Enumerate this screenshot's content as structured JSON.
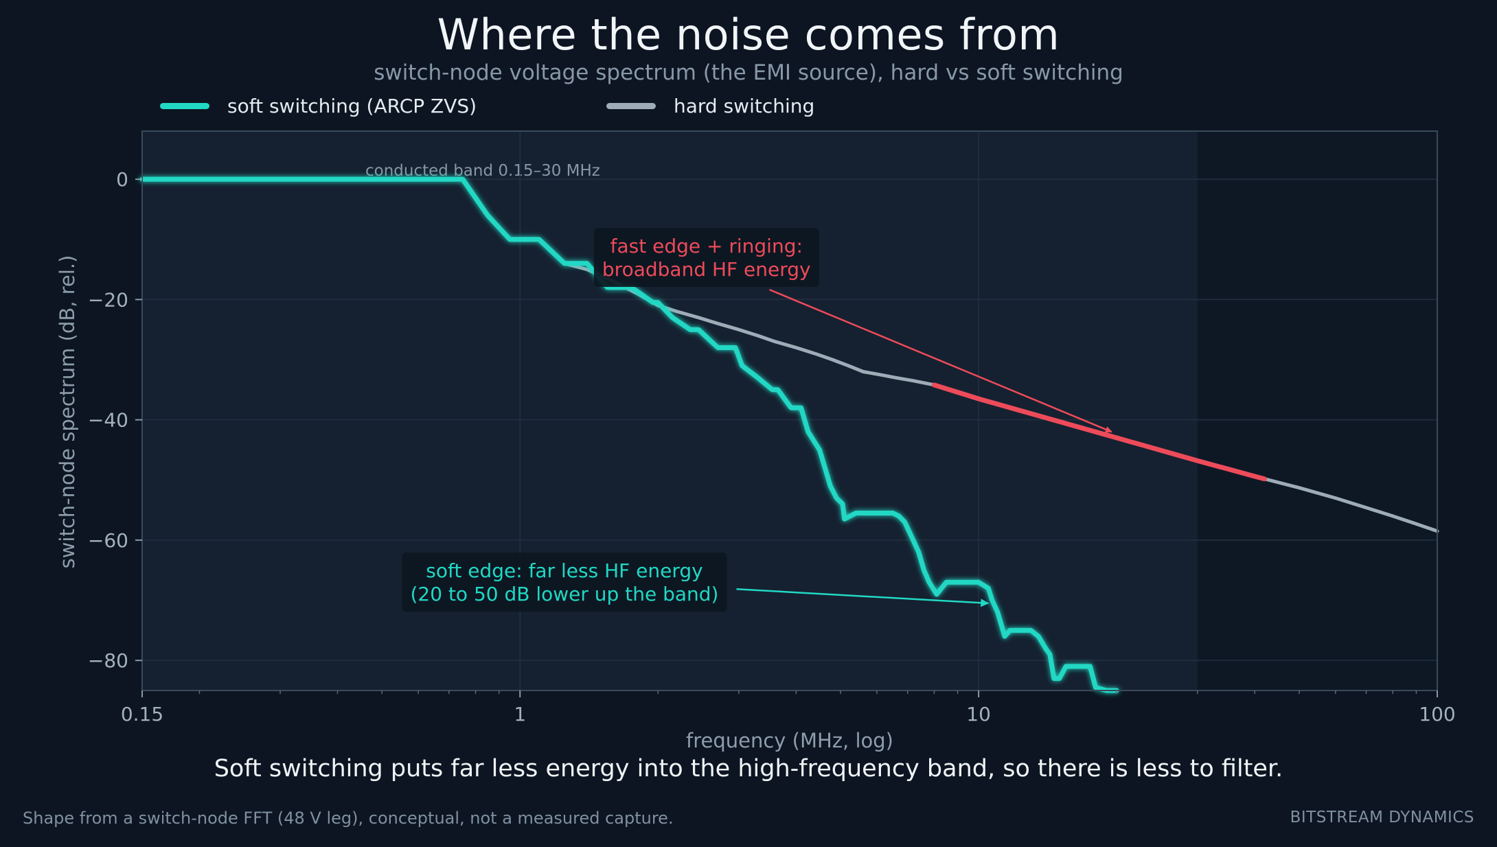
{
  "title": "Where the noise comes from",
  "subtitle": "switch-node voltage spectrum (the EMI source), hard vs soft switching",
  "caption": "Soft switching puts far less energy into the high-frequency band, so there is less to filter.",
  "footnote": "Shape from a switch-node FFT (48 V leg), conceptual, not a measured capture.",
  "brand": "BITSTREAM DYNAMICS",
  "colors": {
    "soft": "#21d8c4",
    "hard": "#9eacb8",
    "highlight": "#ee4b5a",
    "background": "#0c1521",
    "plot_background": "#152130",
    "band_shade": "#1a2634"
  },
  "chart_data": {
    "type": "line",
    "title": "Where the noise comes from",
    "subtitle": "switch-node voltage spectrum (the EMI source), hard vs soft switching",
    "xlabel": "frequency  (MHz, log)",
    "ylabel": "switch-node spectrum  (dB, rel.)",
    "xscale": "log",
    "xlim": [
      0.15,
      100
    ],
    "ylim": [
      -85,
      8
    ],
    "x_ticks": [
      {
        "value": 0.15,
        "label": "0.15"
      },
      {
        "value": 1,
        "label": "1"
      },
      {
        "value": 10,
        "label": "10"
      },
      {
        "value": 100,
        "label": "100"
      }
    ],
    "y_ticks": [
      {
        "value": 0,
        "label": "0"
      },
      {
        "value": -20,
        "label": "−20"
      },
      {
        "value": -40,
        "label": "−40"
      },
      {
        "value": -60,
        "label": "−60"
      },
      {
        "value": -80,
        "label": "−80"
      }
    ],
    "grid": true,
    "legend": "top-left",
    "band": {
      "x0": 0.15,
      "x1": 30,
      "label": "conducted band  0.15–30 MHz"
    },
    "series": [
      {
        "name": "soft switching  (ARCP ZVS)",
        "x": [
          0.15,
          0.75,
          0.85,
          0.95,
          1.0,
          1.1,
          1.25,
          1.35,
          1.4,
          1.55,
          1.65,
          1.75,
          1.95,
          2.0,
          2.15,
          2.35,
          2.45,
          2.7,
          2.95,
          3.05,
          3.3,
          3.55,
          3.65,
          3.9,
          4.1,
          4.25,
          4.5,
          4.75,
          4.9,
          5.05,
          5.1,
          5.4,
          6.5,
          6.7,
          6.9,
          7.1,
          7.4,
          7.6,
          7.8,
          8.1,
          8.5,
          9.0,
          10.0,
          10.5,
          10.7,
          11.0,
          11.2,
          11.4,
          11.7,
          12.0,
          13.0,
          13.5,
          14.0,
          14.3,
          14.6,
          15.0,
          15.5,
          16.5,
          17.0,
          17.5,
          18.0,
          19.0,
          20.0
        ],
        "y": [
          0,
          0,
          -6,
          -10,
          -10,
          -10,
          -14,
          -14,
          -14,
          -18,
          -18,
          -18,
          -20.5,
          -20.5,
          -23,
          -25,
          -25,
          -28,
          -28,
          -31,
          -33,
          -35,
          -35,
          -38,
          -38,
          -42,
          -45,
          -51,
          -53,
          -54,
          -56.5,
          -55.5,
          -55.5,
          -56,
          -57,
          -59,
          -62,
          -65,
          -67,
          -69,
          -67,
          -67,
          -67,
          -68,
          -70,
          -72,
          -74,
          -76,
          -75,
          -75,
          -75,
          -76,
          -78,
          -79,
          -83,
          -83,
          -81,
          -81,
          -81,
          -81,
          -84.5,
          -85,
          -85
        ]
      },
      {
        "name": "hard switching",
        "x": [
          0.15,
          0.75,
          0.85,
          0.95,
          1.0,
          1.1,
          1.25,
          1.4,
          1.6,
          1.8,
          2.0,
          2.2,
          2.45,
          2.7,
          3.0,
          3.3,
          3.6,
          4.0,
          4.4,
          4.8,
          5.2,
          5.6,
          6.1,
          6.6,
          7.2,
          8.0,
          10.0,
          15.0,
          20.0,
          30.0,
          40.0,
          50.0,
          60.0,
          70.0,
          80.0,
          90.0,
          100.0
        ],
        "y": [
          0,
          0,
          -6,
          -10,
          -10,
          -10,
          -14,
          -15,
          -17,
          -19,
          -21,
          -22,
          -23,
          -24,
          -25,
          -26,
          -27,
          -28,
          -29,
          -30,
          -31,
          -32,
          -32.5,
          -33,
          -33.5,
          -34.2,
          -36.5,
          -40.3,
          -43,
          -46.8,
          -49.4,
          -51.3,
          -53.0,
          -54.6,
          -56.0,
          -57.3,
          -58.5
        ]
      }
    ],
    "highlight_segment": {
      "series": "hard switching",
      "x0": 8,
      "x1": 42
    },
    "annotations": [
      {
        "id": "hard",
        "lines": [
          "fast edge + ringing:",
          "broadband HF energy"
        ],
        "color": "highlight",
        "text_at": [
          2.55,
          -13
        ],
        "arrow_to": [
          19.5,
          -42
        ]
      },
      {
        "id": "soft",
        "lines": [
          "soft edge: far less HF energy",
          "(20 to 50 dB lower up the band)"
        ],
        "color": "soft",
        "text_at": [
          1.25,
          -67
        ],
        "arrow_to": [
          10.5,
          -70.5
        ]
      }
    ]
  }
}
